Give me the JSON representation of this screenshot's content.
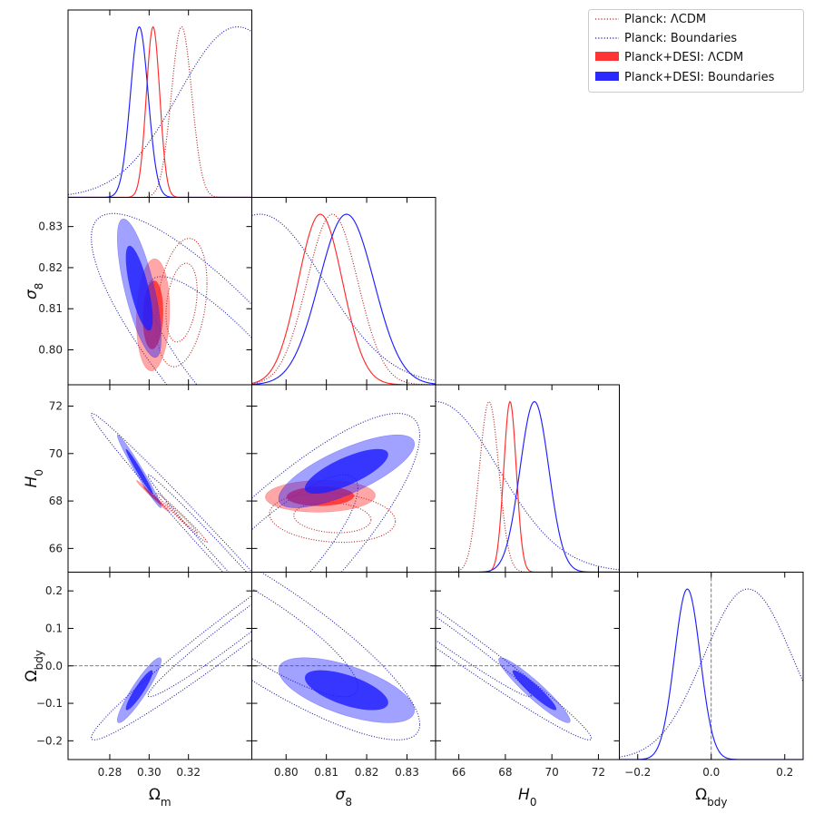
{
  "chart_data": {
    "type": "triangle-corner-plot",
    "parameters": [
      {
        "key": "Om",
        "label": "Ωm",
        "range": [
          0.2588,
          0.3522
        ],
        "ticks": [
          0.28,
          0.3,
          0.32
        ],
        "tick_labels": [
          "0.28",
          "0.30",
          "0.32"
        ]
      },
      {
        "key": "s8",
        "label": "σ8",
        "range": [
          0.7915,
          0.8371
        ],
        "ticks": [
          0.8,
          0.81,
          0.82,
          0.83
        ],
        "tick_labels": [
          "0.80",
          "0.81",
          "0.82",
          "0.83"
        ]
      },
      {
        "key": "H0",
        "label": "H0",
        "range": [
          65.0,
          72.9
        ],
        "ticks": [
          66,
          68,
          70,
          72
        ],
        "tick_labels": [
          "66",
          "68",
          "70",
          "72"
        ]
      },
      {
        "key": "Ob",
        "label": "Ωbdy",
        "range": [
          -0.25,
          0.25
        ],
        "ticks": [
          -0.2,
          0.0,
          0.2
        ],
        "tick_labels": [
          "−0.2",
          "0.0",
          "0.2"
        ],
        "y_tick_labels": [
          "−0.2",
          "−0.1",
          "0.0",
          "0.1",
          "0.2"
        ],
        "y_ticks": [
          -0.2,
          -0.1,
          0.0,
          0.1,
          0.2
        ]
      }
    ],
    "legend": {
      "position": "top-right",
      "entries": [
        {
          "label": "Planck: ΛCDM",
          "style": "dotted-line",
          "color": "#b22222"
        },
        {
          "label": "Planck: Boundaries",
          "style": "dotted-line",
          "color": "#1a1aa0"
        },
        {
          "label": "Planck+DESI: ΛCDM",
          "style": "filled",
          "color": "#ff2a2a"
        },
        {
          "label": "Planck+DESI: Boundaries",
          "style": "filled",
          "color": "#1f1fff"
        }
      ]
    },
    "reference_lines": {
      "Ob": 0.0
    },
    "series": [
      {
        "name": "Planck: ΛCDM",
        "style": "dotted",
        "color": "#b22222",
        "means": {
          "Om": 0.3165,
          "s8": 0.8115,
          "H0": 67.3
        },
        "sigmas": {
          "Om": 0.0052,
          "s8": 0.0063,
          "H0": 0.42
        },
        "correlations": [
          [
            "Om",
            "s8",
            0.3
          ],
          [
            "Om",
            "H0",
            -0.99
          ],
          [
            "s8",
            "H0",
            -0.15
          ]
        ]
      },
      {
        "name": "Planck: Boundaries",
        "style": "dotted",
        "color": "#1a1aa0",
        "means": {
          "Om": 0.345,
          "s8": 0.7935,
          "H0": 65.0,
          "Ob": 0.1
        },
        "sigmas": {
          "Om": 0.03,
          "s8": 0.016,
          "H0": 2.7,
          "Ob": 0.12
        },
        "correlations": [
          [
            "Om",
            "s8",
            -0.85
          ],
          [
            "Om",
            "H0",
            -0.995
          ],
          [
            "Om",
            "Ob",
            0.98
          ],
          [
            "s8",
            "H0",
            0.86
          ],
          [
            "s8",
            "Ob",
            -0.86
          ],
          [
            "H0",
            "Ob",
            -0.985
          ]
        ]
      },
      {
        "name": "Planck+DESI: ΛCDM",
        "style": "filled",
        "color": "#ff2a2a",
        "means": {
          "Om": 0.302,
          "s8": 0.8085,
          "H0": 68.2
        },
        "sigmas": {
          "Om": 0.0034,
          "s8": 0.0055,
          "H0": 0.27
        },
        "correlations": [
          [
            "Om",
            "s8",
            0.1
          ],
          [
            "Om",
            "H0",
            -0.99
          ],
          [
            "s8",
            "H0",
            0.05
          ]
        ]
      },
      {
        "name": "Planck+DESI: Boundaries",
        "style": "filled",
        "color": "#1f1fff",
        "means": {
          "Om": 0.295,
          "s8": 0.815,
          "H0": 69.25,
          "Ob": -0.065
        },
        "sigmas": {
          "Om": 0.0045,
          "s8": 0.0068,
          "H0": 0.62,
          "Ob": 0.035
        },
        "correlations": [
          [
            "Om",
            "s8",
            -0.72
          ],
          [
            "Om",
            "H0",
            -0.98
          ],
          [
            "Om",
            "Ob",
            0.92
          ],
          [
            "s8",
            "H0",
            0.75
          ],
          [
            "s8",
            "Ob",
            -0.62
          ],
          [
            "H0",
            "Ob",
            -0.94
          ]
        ]
      }
    ]
  }
}
